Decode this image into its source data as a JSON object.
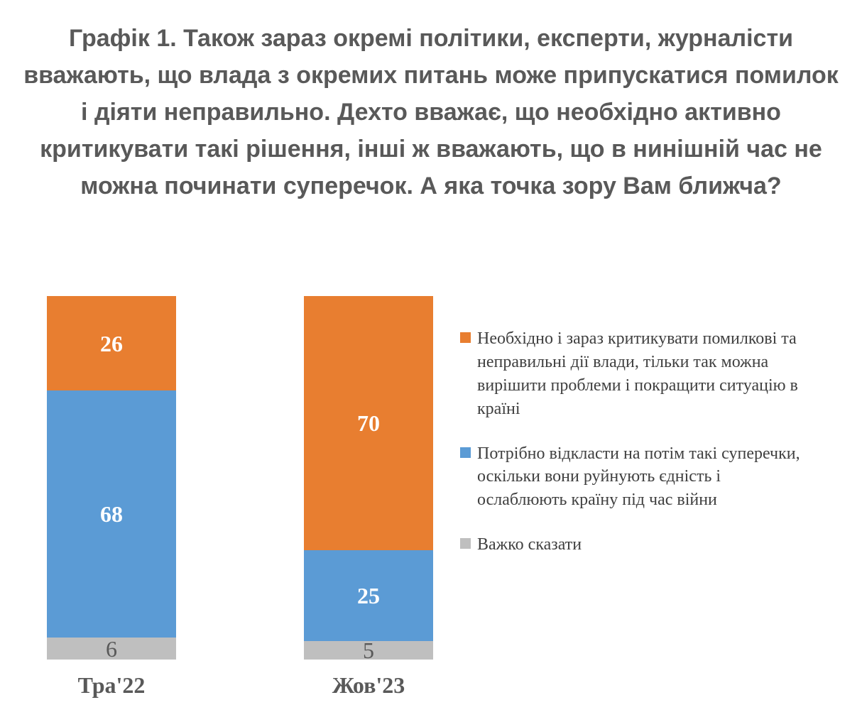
{
  "title": "Графік 1. Також зараз окремі політики, експерти, журналісти вважають, що влада з окремих питань може припускатися помилок і діяти неправильно.  Дехто вважає, що необхідно активно критикувати такі рішення, інші ж вважають, що в нинішній час не можна починати суперечок. А яка точка зору Вам ближча?",
  "chart_data": {
    "type": "bar",
    "subtype": "stacked-column-100",
    "title": "Графік 1. Також зараз окремі політики, експерти, журналісти вважають, що влада з окремих питань може припускатися помилок і діяти неправильно.  Дехто вважає, що необхідно активно критикувати такі рішення, інші ж вважають, що в нинішній час не можна починати суперечок. А яка точка зору Вам ближча?",
    "categories": [
      "Тра'22",
      "Жов'23"
    ],
    "series": [
      {
        "name": "Необхідно і зараз критикувати помилкові та неправильні дії влади, тільки так можна вирішити проблеми і покращити ситуацію в країні",
        "color": "#E87E30",
        "label_color": "#FFFFFF",
        "label_bold": true,
        "values": [
          26,
          70
        ]
      },
      {
        "name": "Потрібно відкласти на потім такі суперечки, оскільки вони руйнують єдність і ослаблюють країну під час війни",
        "color": "#5B9BD5",
        "label_color": "#FFFFFF",
        "label_bold": true,
        "values": [
          68,
          25
        ]
      },
      {
        "name": "Важко сказати",
        "color": "#BFBFBF",
        "label_color": "#595959",
        "label_bold": false,
        "values": [
          6,
          5
        ]
      }
    ],
    "stack_order": "first series on top, last series at bottom",
    "ylim": [
      0,
      100
    ],
    "grid": false,
    "axis_lines": false,
    "legend_position": "right",
    "title_color": "#595959",
    "category_label_color": "#595959",
    "legend_text_color": "#404040",
    "background_color": "#FFFFFF"
  }
}
